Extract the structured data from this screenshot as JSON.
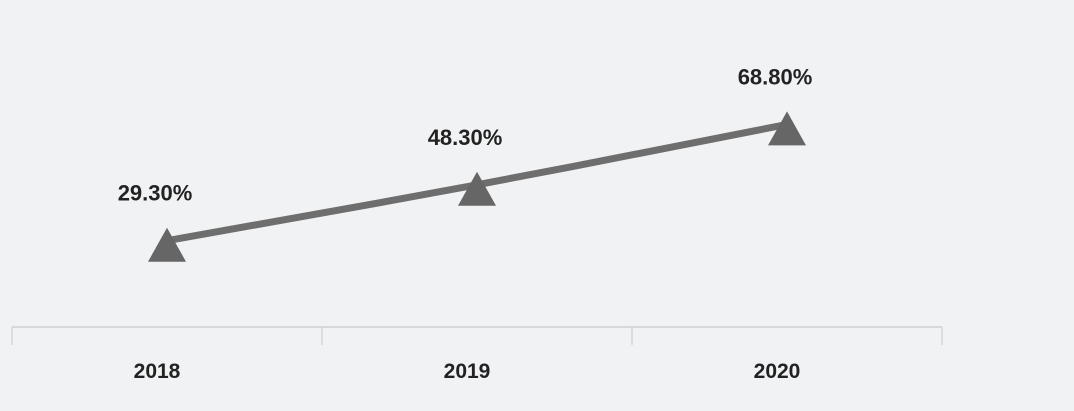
{
  "chart_data": {
    "type": "line",
    "categories": [
      "2018",
      "2019",
      "2020"
    ],
    "series": [
      {
        "values": [
          29.3,
          48.3,
          68.8
        ],
        "labels": [
          "29.30%",
          "48.30%",
          "68.80%"
        ]
      }
    ],
    "ylim": [
      0,
      90
    ],
    "marker": "triangle",
    "grid": false,
    "legend": "none",
    "line_color": "#6e6e6e",
    "marker_color": "#666666",
    "axis_color": "#cfcfcf",
    "text_color": "#222222"
  }
}
